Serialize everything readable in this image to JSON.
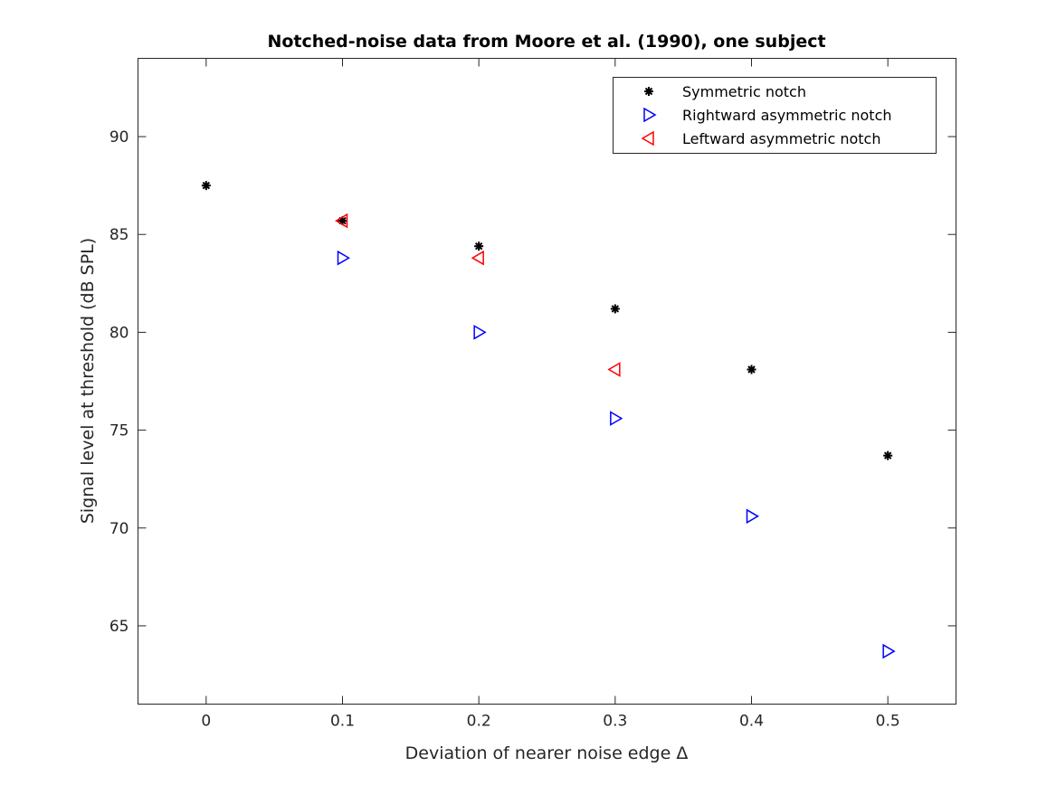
{
  "chart_data": {
    "type": "scatter",
    "title": "Notched-noise data from Moore et al. (1990), one subject",
    "xlabel": "Deviation of nearer noise edge Δ",
    "ylabel": "Signal level at threshold (dB SPL)",
    "xlim": [
      -0.05,
      0.55
    ],
    "ylim": [
      61,
      94
    ],
    "xticks": [
      0,
      0.1,
      0.2,
      0.3,
      0.4,
      0.5
    ],
    "xtick_labels": [
      "0",
      "0.1",
      "0.2",
      "0.3",
      "0.4",
      "0.5"
    ],
    "yticks": [
      65,
      70,
      75,
      80,
      85,
      90
    ],
    "ytick_labels": [
      "65",
      "70",
      "75",
      "80",
      "85",
      "90"
    ],
    "grid": false,
    "legend_position": "top-right",
    "series": [
      {
        "name": "Symmetric notch",
        "marker": "asterisk",
        "color": "#000000",
        "x": [
          0,
          0.1,
          0.2,
          0.3,
          0.4,
          0.5
        ],
        "y": [
          87.5,
          85.7,
          84.4,
          81.2,
          78.1,
          73.7
        ]
      },
      {
        "name": "Rightward asymmetric notch",
        "marker": "triangle-right",
        "color": "#0000ff",
        "x": [
          0.1,
          0.2,
          0.3,
          0.4,
          0.5
        ],
        "y": [
          83.8,
          80.0,
          75.6,
          70.6,
          63.7
        ]
      },
      {
        "name": "Leftward asymmetric notch",
        "marker": "triangle-left",
        "color": "#ff0000",
        "x": [
          0.1,
          0.2,
          0.3
        ],
        "y": [
          85.7,
          83.8,
          78.1
        ]
      }
    ]
  }
}
